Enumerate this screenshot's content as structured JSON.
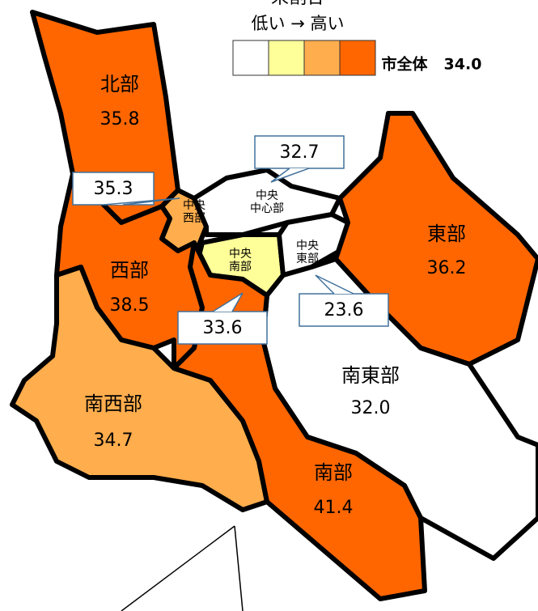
{
  "legend": {
    "title": "来割合",
    "scale": "低い → 高い",
    "colors": [
      "#ffffff",
      "#ffff99",
      "#ffad4d",
      "#ff6600"
    ]
  },
  "overall": {
    "label": "市全体",
    "value": "34.0"
  },
  "regions": [
    {
      "name": [
        "北部"
      ],
      "value": "35.8",
      "color": "#ff6600"
    },
    {
      "name": [
        "中央",
        "西部"
      ],
      "value": "35.3",
      "color": "#ffad4d"
    },
    {
      "name": [
        "西部"
      ],
      "value": "38.5",
      "color": "#ff6600"
    },
    {
      "name": [
        "南西部"
      ],
      "value": "34.7",
      "color": "#ffad4d"
    },
    {
      "name": [
        "中央",
        "中心部"
      ],
      "value": "32.7",
      "color": "#ffffff"
    },
    {
      "name": [
        "中央",
        "南部"
      ],
      "value": "33.6",
      "color": "#ffff99"
    },
    {
      "name": [
        "中央",
        "東部"
      ],
      "value": "23.6",
      "color": "#ffffff"
    },
    {
      "name": [
        "東部"
      ],
      "value": "36.2",
      "color": "#ff6600"
    },
    {
      "name": [
        "南東部"
      ],
      "value": "32.0",
      "color": "#ffffff"
    },
    {
      "name": [
        "南部"
      ],
      "value": "41.4",
      "color": "#ff6600"
    }
  ]
}
